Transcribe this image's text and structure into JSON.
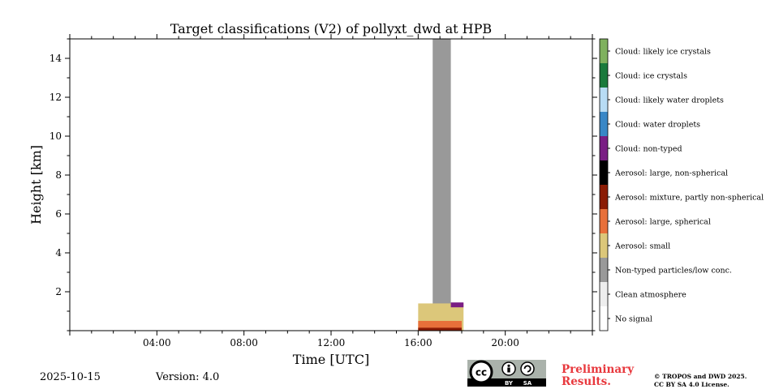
{
  "chart_data": {
    "type": "heatmap",
    "title": "Target classifications (V2) of pollyxt_dwd at HPB",
    "xlabel": "Time [UTC]",
    "ylabel": "Height [km]",
    "xlim": [
      "00:00",
      "24:00"
    ],
    "ylim": [
      0,
      15
    ],
    "x_ticks": [
      "04:00",
      "08:00",
      "12:00",
      "16:00",
      "20:00"
    ],
    "y_ticks": [
      "2",
      "4",
      "6",
      "8",
      "10",
      "12",
      "14"
    ],
    "grid": false,
    "colorbar_classes": [
      {
        "label": "Cloud: likely ice crystals",
        "color": "#7fb15e"
      },
      {
        "label": "Cloud: ice crystals",
        "color": "#1a7a3c"
      },
      {
        "label": "Cloud: likely water droplets",
        "color": "#b8dcf4"
      },
      {
        "label": "Cloud: water droplets",
        "color": "#3987c6"
      },
      {
        "label": "Cloud: non-typed",
        "color": "#7a1e84"
      },
      {
        "label": "Aerosol: large, non-spherical",
        "color": "#000000"
      },
      {
        "label": "Aerosol: mixture, partly non-spherical",
        "color": "#8b1c05"
      },
      {
        "label": "Aerosol: large, spherical",
        "color": "#e8703a"
      },
      {
        "label": "Aerosol: small",
        "color": "#dcc77a"
      },
      {
        "label": "Non-typed particles/low conc.",
        "color": "#999999"
      },
      {
        "label": "Clean atmosphere",
        "color": "#eeeeee"
      },
      {
        "label": "No signal",
        "color": "#ffffff"
      }
    ],
    "regions": [
      {
        "class": "Non-typed particles/low conc.",
        "time": [
          "16:40",
          "17:30"
        ],
        "height_km": [
          1.3,
          15.0
        ]
      },
      {
        "class": "Aerosol: small",
        "time": [
          "16:00",
          "18:05"
        ],
        "height_km": [
          0.0,
          1.4
        ]
      },
      {
        "class": "Aerosol: large, spherical",
        "time": [
          "16:00",
          "18:00"
        ],
        "height_km": [
          0.0,
          0.5
        ]
      },
      {
        "class": "Aerosol: mixture, partly non-spherical",
        "time": [
          "16:00",
          "18:00"
        ],
        "height_km": [
          0.0,
          0.15
        ]
      },
      {
        "class": "Cloud: non-typed",
        "time": [
          "17:30",
          "18:05"
        ],
        "height_km": [
          1.2,
          1.45
        ]
      }
    ]
  },
  "footer": {
    "date": "2025-10-15",
    "version": "Version: 4.0",
    "preliminary_line1": "Preliminary",
    "preliminary_line2": "Results.",
    "copyright_line1": "© TROPOS and DWD 2025.",
    "copyright_line2": "CC BY SA 4.0 License.",
    "cc_text": "cc",
    "by_text": "BY",
    "sa_text": "SA"
  }
}
